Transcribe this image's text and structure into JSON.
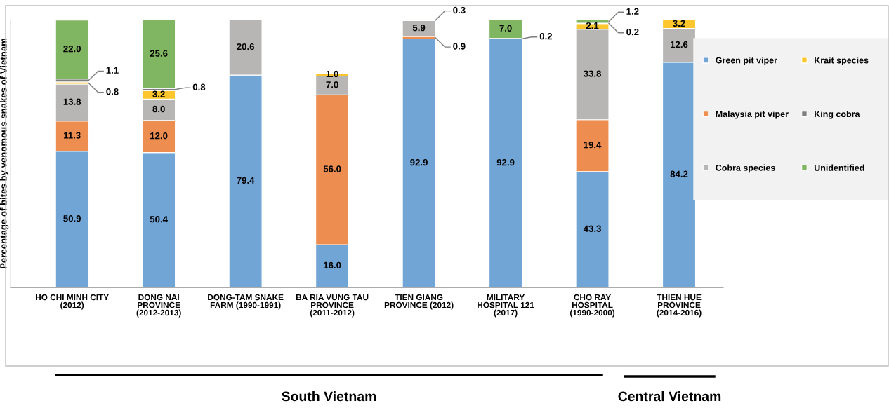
{
  "chart_data": {
    "type": "bar",
    "stacked": true,
    "ylabel": "Percentage of bites by venomous snakes of Vietnam",
    "categories": [
      "HO CHI MINH CITY (2012)",
      "DONG NAI PROVINCE (2012-2013)",
      "DONG-TAM SNAKE FARM (1990-1991)",
      "BA RIA VUNG TAU PROVINCE (2011-2012)",
      "TIEN GIANG PROVINCE (2012)",
      "MILITARY HOSPITAL 121 (2017)",
      "CHO RAY HOSPITAL (1990-2000)",
      "THIEN HUE PROVINCE (2014-2016)"
    ],
    "series": [
      {
        "name": "Green pit viper",
        "color": "#70a5d6",
        "values": [
          50.9,
          50.4,
          79.4,
          16.0,
          92.9,
          92.9,
          43.3,
          84.2
        ],
        "value_labels": [
          "50.9",
          "50.4",
          "79.4",
          "16.0",
          "92.9",
          "92.9",
          "43.3",
          "84.2"
        ]
      },
      {
        "name": "Malaysia pit viper",
        "color": "#ed8d4f",
        "values": [
          11.3,
          12.0,
          null,
          56.0,
          0.9,
          null,
          19.4,
          null
        ],
        "value_labels": [
          "11.3",
          "12.0",
          null,
          "56.0",
          "0.9",
          null,
          "19.4",
          null
        ]
      },
      {
        "name": "Cobra species",
        "color": "#b7b6b4",
        "values": [
          13.8,
          8.0,
          20.6,
          7.0,
          5.9,
          0.2,
          33.8,
          12.6
        ],
        "value_labels": [
          "13.8",
          "8.0",
          "20.6",
          "7.0",
          "5.9",
          "0.2",
          "33.8",
          "12.6"
        ]
      },
      {
        "name": "Krait species",
        "color": "#fec62d",
        "values": [
          0.8,
          3.2,
          null,
          1.0,
          0.3,
          null,
          2.1,
          3.2
        ],
        "value_labels": [
          "0.8",
          "3.2",
          null,
          "1.0",
          "0.3",
          null,
          "2.1",
          "3.2"
        ]
      },
      {
        "name": "King cobra",
        "color": "#7f7f7f",
        "values": [
          1.1,
          0.8,
          null,
          null,
          null,
          null,
          0.2,
          null
        ],
        "value_labels": [
          "1.1",
          "0.8",
          null,
          null,
          null,
          null,
          "0.2",
          null
        ]
      },
      {
        "name": "Unidentified",
        "color": "#80b561",
        "values": [
          22.0,
          25.6,
          null,
          null,
          null,
          7.0,
          1.2,
          null
        ],
        "value_labels": [
          "22.0",
          "25.6",
          null,
          null,
          null,
          "7.0",
          "1.2",
          null
        ]
      }
    ],
    "legend": "right",
    "grid": false,
    "tick_labels": "x",
    "annotations": [
      "South Vietnam",
      "Central Vietnam"
    ]
  }
}
